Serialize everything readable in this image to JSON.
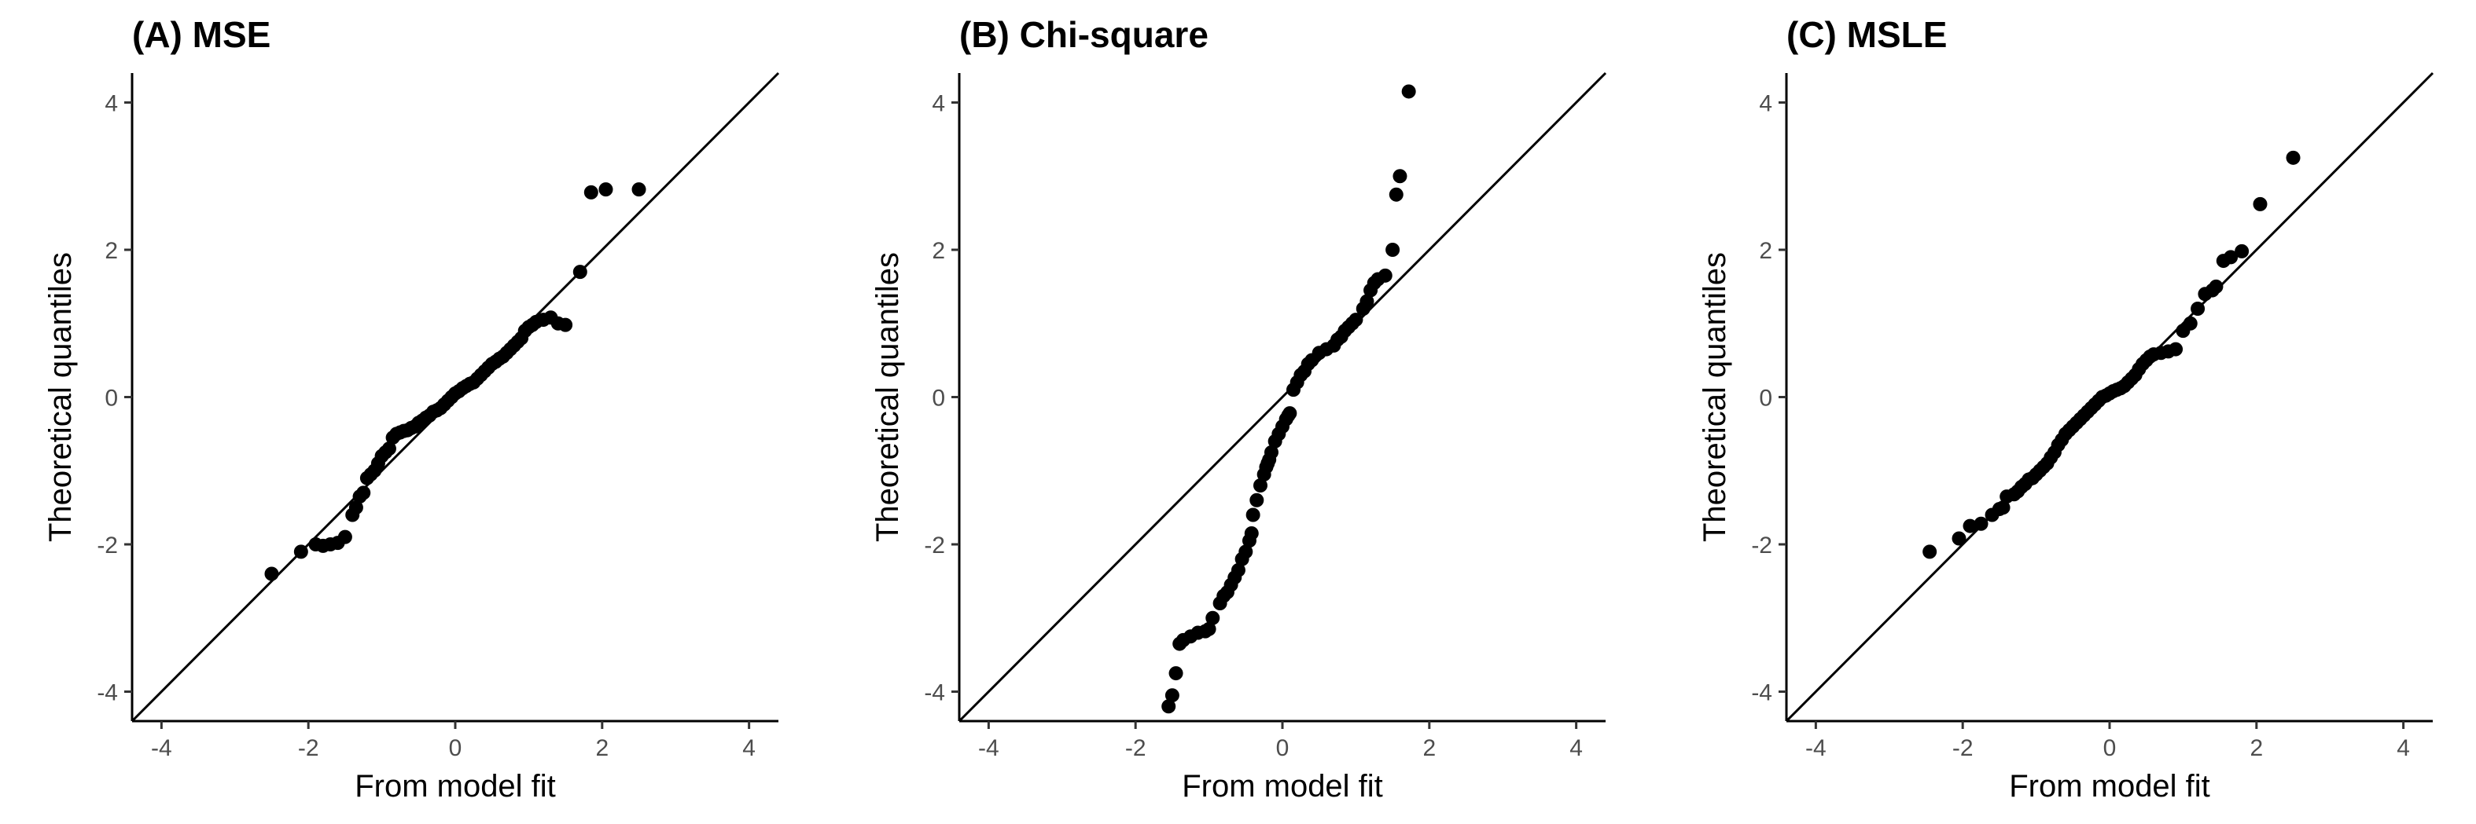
{
  "chart_data": [
    {
      "type": "scatter",
      "title": "(A) MSE",
      "xlabel": "From model fit",
      "ylabel": "Theoretical quantiles",
      "xlim": [
        -4.4,
        4.4
      ],
      "ylim": [
        -4.4,
        4.4
      ],
      "xticks": [
        -4,
        -2,
        0,
        2,
        4
      ],
      "yticks": [
        -4,
        -2,
        0,
        2,
        4
      ],
      "reference_line": "y = x",
      "grid": false,
      "x": [
        -2.5,
        -2.1,
        -1.9,
        -1.8,
        -1.7,
        -1.6,
        -1.5,
        -1.4,
        -1.35,
        -1.3,
        -1.25,
        -1.2,
        -1.15,
        -1.1,
        -1.05,
        -1.0,
        -0.95,
        -0.9,
        -0.85,
        -0.8,
        -0.75,
        -0.7,
        -0.65,
        -0.6,
        -0.55,
        -0.5,
        -0.45,
        -0.4,
        -0.35,
        -0.3,
        -0.25,
        -0.2,
        -0.15,
        -0.1,
        -0.05,
        0.0,
        0.05,
        0.1,
        0.15,
        0.2,
        0.25,
        0.3,
        0.35,
        0.4,
        0.45,
        0.5,
        0.55,
        0.6,
        0.65,
        0.7,
        0.75,
        0.8,
        0.85,
        0.9,
        0.95,
        1.0,
        1.05,
        1.1,
        1.2,
        1.3,
        1.4,
        1.5,
        1.7,
        1.85,
        2.05,
        2.5
      ],
      "y": [
        -2.4,
        -2.1,
        -2.0,
        -2.02,
        -2.0,
        -1.98,
        -1.9,
        -1.6,
        -1.5,
        -1.35,
        -1.3,
        -1.1,
        -1.05,
        -1.0,
        -0.9,
        -0.8,
        -0.75,
        -0.7,
        -0.55,
        -0.5,
        -0.48,
        -0.46,
        -0.45,
        -0.42,
        -0.4,
        -0.35,
        -0.32,
        -0.28,
        -0.25,
        -0.2,
        -0.18,
        -0.15,
        -0.1,
        -0.05,
        0.0,
        0.05,
        0.08,
        0.12,
        0.15,
        0.18,
        0.2,
        0.25,
        0.3,
        0.35,
        0.4,
        0.45,
        0.48,
        0.52,
        0.55,
        0.6,
        0.65,
        0.7,
        0.75,
        0.8,
        0.9,
        0.95,
        0.98,
        1.02,
        1.05,
        1.08,
        1.0,
        0.98,
        1.7,
        2.78,
        2.82,
        2.82
      ]
    },
    {
      "type": "scatter",
      "title": "(B) Chi-square",
      "xlabel": "From model fit",
      "ylabel": "Theoretical quantiles",
      "xlim": [
        -4.4,
        4.4
      ],
      "ylim": [
        -4.4,
        4.4
      ],
      "xticks": [
        -4,
        -2,
        0,
        2,
        4
      ],
      "yticks": [
        -4,
        -2,
        0,
        2,
        4
      ],
      "reference_line": "y = x",
      "grid": false,
      "x": [
        -1.55,
        -1.5,
        -1.45,
        -1.4,
        -1.35,
        -1.25,
        -1.15,
        -1.05,
        -1.0,
        -0.95,
        -0.85,
        -0.8,
        -0.75,
        -0.7,
        -0.65,
        -0.6,
        -0.55,
        -0.5,
        -0.45,
        -0.42,
        -0.4,
        -0.35,
        -0.3,
        -0.25,
        -0.22,
        -0.2,
        -0.18,
        -0.15,
        -0.1,
        -0.05,
        0.0,
        0.05,
        0.08,
        0.1,
        0.15,
        0.2,
        0.25,
        0.3,
        0.35,
        0.4,
        0.5,
        0.6,
        0.7,
        0.75,
        0.8,
        0.85,
        0.9,
        0.95,
        1.0,
        1.1,
        1.15,
        1.2,
        1.25,
        1.3,
        1.4,
        1.5,
        1.55,
        1.6,
        1.72
      ],
      "y": [
        -4.2,
        -4.05,
        -3.75,
        -3.35,
        -3.3,
        -3.25,
        -3.2,
        -3.18,
        -3.15,
        -3.0,
        -2.8,
        -2.7,
        -2.65,
        -2.55,
        -2.45,
        -2.35,
        -2.2,
        -2.1,
        -1.95,
        -1.85,
        -1.6,
        -1.4,
        -1.2,
        -1.05,
        -0.95,
        -0.9,
        -0.85,
        -0.75,
        -0.6,
        -0.5,
        -0.4,
        -0.3,
        -0.25,
        -0.22,
        0.1,
        0.2,
        0.3,
        0.35,
        0.45,
        0.5,
        0.6,
        0.65,
        0.7,
        0.78,
        0.82,
        0.9,
        0.95,
        1.0,
        1.05,
        1.2,
        1.3,
        1.45,
        1.55,
        1.6,
        1.65,
        2.0,
        2.75,
        3.0,
        4.15
      ]
    },
    {
      "type": "scatter",
      "title": "(C) MSLE",
      "xlabel": "From model fit",
      "ylabel": "Theoretical quantiles",
      "xlim": [
        -4.4,
        4.4
      ],
      "ylim": [
        -4.4,
        4.4
      ],
      "xticks": [
        -4,
        -2,
        0,
        2,
        4
      ],
      "yticks": [
        -4,
        -2,
        0,
        2,
        4
      ],
      "reference_line": "y = x",
      "grid": false,
      "x": [
        -2.45,
        -2.05,
        -1.9,
        -1.75,
        -1.6,
        -1.5,
        -1.45,
        -1.4,
        -1.3,
        -1.25,
        -1.2,
        -1.15,
        -1.1,
        -1.05,
        -1.0,
        -0.95,
        -0.9,
        -0.85,
        -0.8,
        -0.75,
        -0.7,
        -0.65,
        -0.6,
        -0.55,
        -0.5,
        -0.45,
        -0.4,
        -0.35,
        -0.3,
        -0.25,
        -0.2,
        -0.15,
        -0.1,
        -0.05,
        0.0,
        0.05,
        0.1,
        0.15,
        0.2,
        0.25,
        0.3,
        0.35,
        0.4,
        0.45,
        0.5,
        0.55,
        0.6,
        0.7,
        0.8,
        0.9,
        1.0,
        1.1,
        1.2,
        1.3,
        1.4,
        1.45,
        1.55,
        1.65,
        1.8,
        2.05,
        2.5
      ],
      "y": [
        -2.1,
        -1.92,
        -1.75,
        -1.72,
        -1.6,
        -1.52,
        -1.5,
        -1.35,
        -1.32,
        -1.28,
        -1.22,
        -1.18,
        -1.12,
        -1.1,
        -1.05,
        -1.0,
        -0.95,
        -0.9,
        -0.82,
        -0.75,
        -0.65,
        -0.58,
        -0.5,
        -0.45,
        -0.4,
        -0.35,
        -0.3,
        -0.25,
        -0.2,
        -0.15,
        -0.1,
        -0.05,
        0.0,
        0.02,
        0.05,
        0.08,
        0.1,
        0.12,
        0.15,
        0.2,
        0.25,
        0.3,
        0.38,
        0.45,
        0.5,
        0.55,
        0.58,
        0.6,
        0.62,
        0.65,
        0.9,
        1.0,
        1.2,
        1.4,
        1.45,
        1.5,
        1.85,
        1.9,
        1.98,
        2.62,
        3.25
      ]
    }
  ]
}
